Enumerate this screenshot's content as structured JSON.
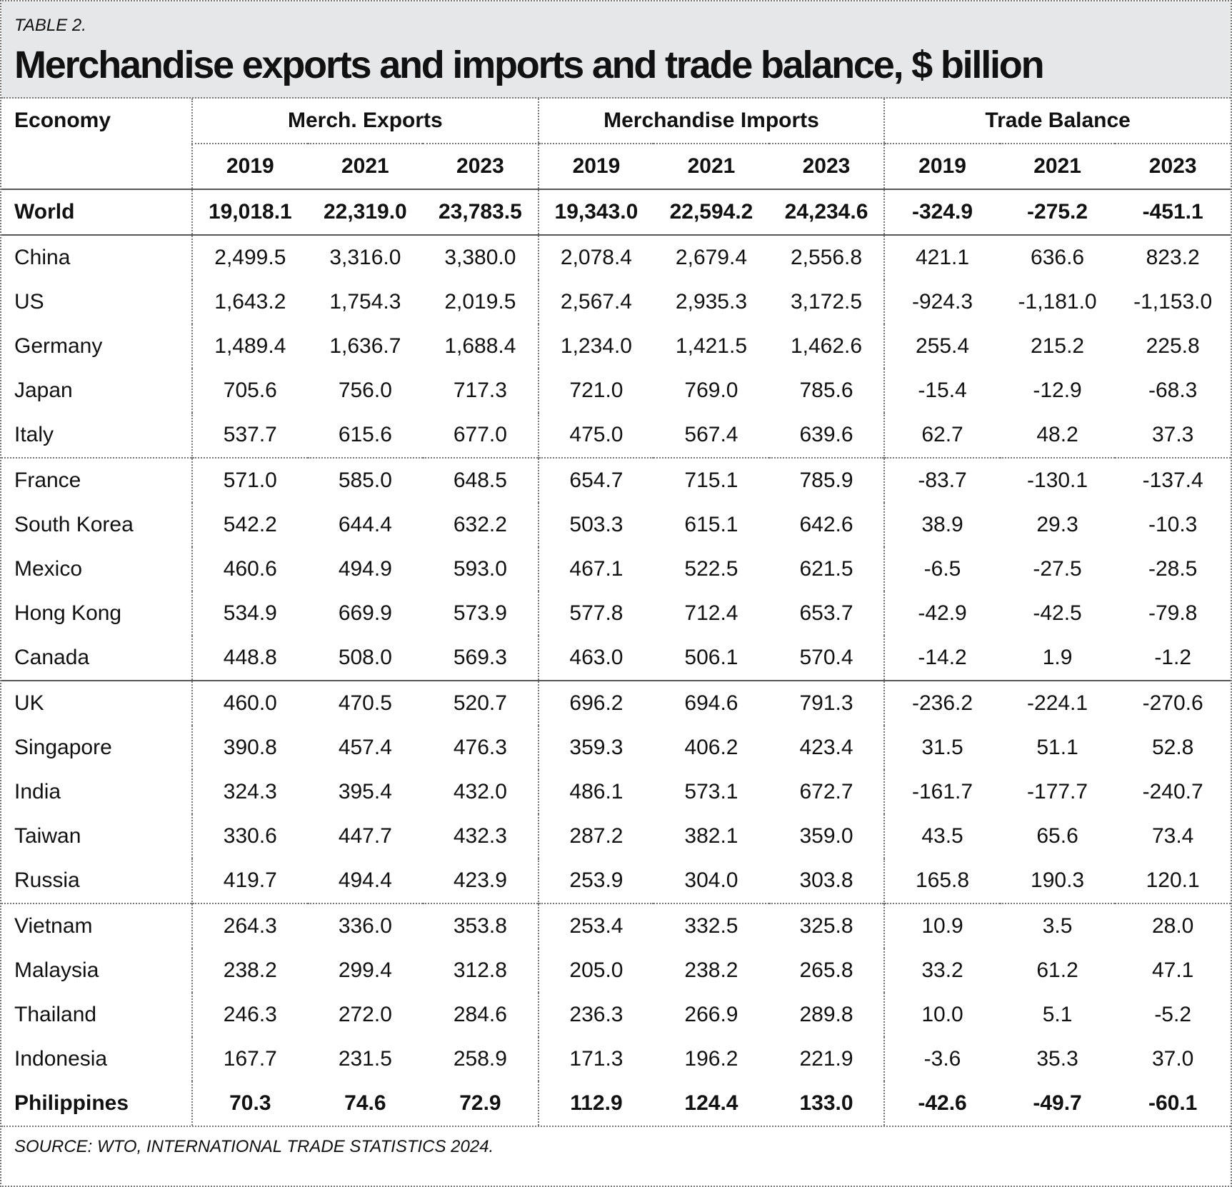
{
  "header": {
    "label": "TABLE 2.",
    "title": "Merchandise exports and imports and trade balance, $ billion"
  },
  "table": {
    "economy_header": "Economy",
    "groups": [
      "Merch. Exports",
      "Merchandise Imports",
      "Trade Balance"
    ],
    "years": [
      "2019",
      "2021",
      "2023",
      "2019",
      "2021",
      "2023",
      "2019",
      "2021",
      "2023"
    ],
    "rows": [
      [
        "World",
        "19,018.1",
        "22,319.0",
        "23,783.5",
        "19,343.0",
        "22,594.2",
        "24,234.6",
        "-324.9",
        "-275.2",
        "-451.1"
      ],
      [
        "China",
        "2,499.5",
        "3,316.0",
        "3,380.0",
        "2,078.4",
        "2,679.4",
        "2,556.8",
        "421.1",
        "636.6",
        "823.2"
      ],
      [
        "US",
        "1,643.2",
        "1,754.3",
        "2,019.5",
        "2,567.4",
        "2,935.3",
        "3,172.5",
        "-924.3",
        "-1,181.0",
        "-1,153.0"
      ],
      [
        "Germany",
        "1,489.4",
        "1,636.7",
        "1,688.4",
        "1,234.0",
        "1,421.5",
        "1,462.6",
        "255.4",
        "215.2",
        "225.8"
      ],
      [
        "Japan",
        "705.6",
        "756.0",
        "717.3",
        "721.0",
        "769.0",
        "785.6",
        "-15.4",
        "-12.9",
        "-68.3"
      ],
      [
        "Italy",
        "537.7",
        "615.6",
        "677.0",
        "475.0",
        "567.4",
        "639.6",
        "62.7",
        "48.2",
        "37.3"
      ],
      [
        "France",
        "571.0",
        "585.0",
        "648.5",
        "654.7",
        "715.1",
        "785.9",
        "-83.7",
        "-130.1",
        "-137.4"
      ],
      [
        "South Korea",
        "542.2",
        "644.4",
        "632.2",
        "503.3",
        "615.1",
        "642.6",
        "38.9",
        "29.3",
        "-10.3"
      ],
      [
        "Mexico",
        "460.6",
        "494.9",
        "593.0",
        "467.1",
        "522.5",
        "621.5",
        "-6.5",
        "-27.5",
        "-28.5"
      ],
      [
        "Hong Kong",
        "534.9",
        "669.9",
        "573.9",
        "577.8",
        "712.4",
        "653.7",
        "-42.9",
        "-42.5",
        "-79.8"
      ],
      [
        "Canada",
        "448.8",
        "508.0",
        "569.3",
        "463.0",
        "506.1",
        "570.4",
        "-14.2",
        "1.9",
        "-1.2"
      ],
      [
        "UK",
        "460.0",
        "470.5",
        "520.7",
        "696.2",
        "694.6",
        "791.3",
        "-236.2",
        "-224.1",
        "-270.6"
      ],
      [
        "Singapore",
        "390.8",
        "457.4",
        "476.3",
        "359.3",
        "406.2",
        "423.4",
        "31.5",
        "51.1",
        "52.8"
      ],
      [
        "India",
        "324.3",
        "395.4",
        "432.0",
        "486.1",
        "573.1",
        "672.7",
        "-161.7",
        "-177.7",
        "-240.7"
      ],
      [
        "Taiwan",
        "330.6",
        "447.7",
        "432.3",
        "287.2",
        "382.1",
        "359.0",
        "43.5",
        "65.6",
        "73.4"
      ],
      [
        "Russia",
        "419.7",
        "494.4",
        "423.9",
        "253.9",
        "304.0",
        "303.8",
        "165.8",
        "190.3",
        "120.1"
      ],
      [
        "Vietnam",
        "264.3",
        "336.0",
        "353.8",
        "253.4",
        "332.5",
        "325.8",
        "10.9",
        "3.5",
        "28.0"
      ],
      [
        "Malaysia",
        "238.2",
        "299.4",
        "312.8",
        "205.0",
        "238.2",
        "265.8",
        "33.2",
        "61.2",
        "47.1"
      ],
      [
        "Thailand",
        "246.3",
        "272.0",
        "284.6",
        "236.3",
        "266.9",
        "289.8",
        "10.0",
        "5.1",
        "-5.2"
      ],
      [
        "Indonesia",
        "167.7",
        "231.5",
        "258.9",
        "171.3",
        "196.2",
        "221.9",
        "-3.6",
        "35.3",
        "37.0"
      ],
      [
        "Philippines",
        "70.3",
        "74.6",
        "72.9",
        "112.9",
        "124.4",
        "133.0",
        "-42.6",
        "-49.7",
        "-60.1"
      ]
    ]
  },
  "source": "SOURCE: WTO, INTERNATIONAL TRADE STATISTICS 2024."
}
